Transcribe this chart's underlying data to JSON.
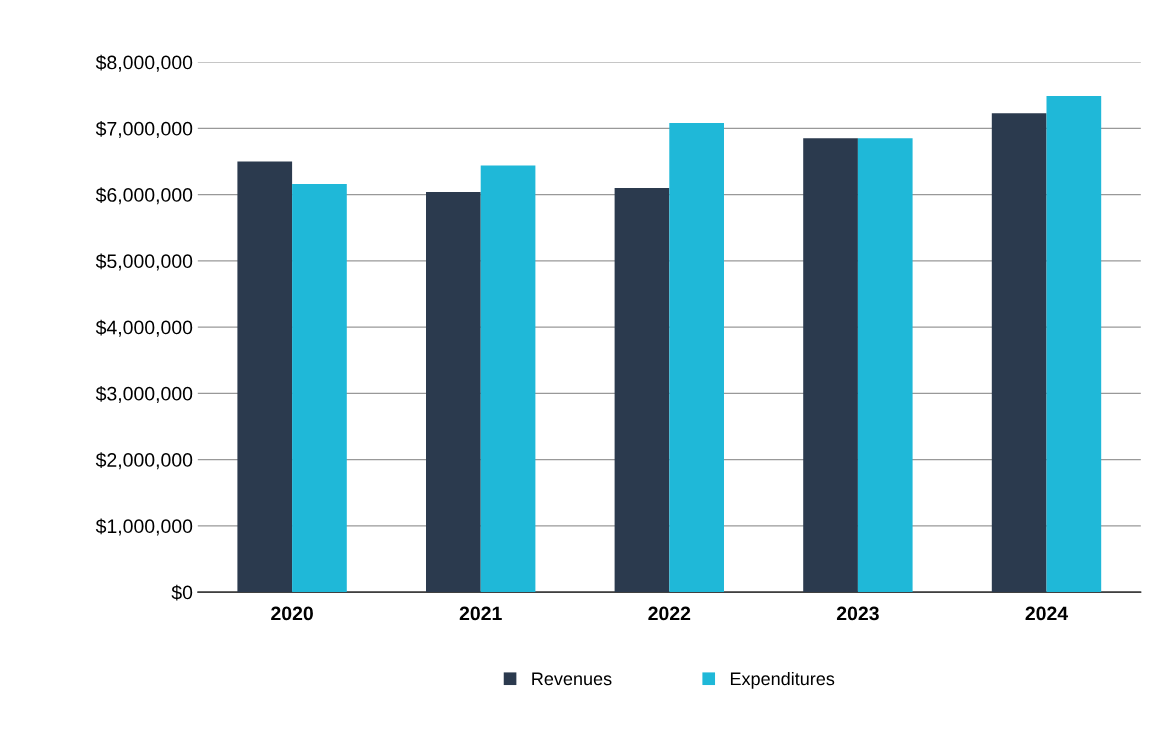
{
  "chart_data": {
    "type": "bar",
    "categories": [
      "2020",
      "2021",
      "2022",
      "2023",
      "2024"
    ],
    "series": [
      {
        "name": "Revenues",
        "color": "#2b3a4e",
        "values": [
          6500000,
          6040000,
          6100000,
          6850000,
          7230000
        ]
      },
      {
        "name": "Expenditures",
        "color": "#1fb8d8",
        "values": [
          6160000,
          6440000,
          7080000,
          6850000,
          7490000
        ]
      }
    ],
    "ylim": [
      0,
      8000000
    ],
    "yticks": [
      {
        "value": 0,
        "label": "$0"
      },
      {
        "value": 1000000,
        "label": "$1,000,000"
      },
      {
        "value": 2000000,
        "label": "$2,000,000"
      },
      {
        "value": 3000000,
        "label": "$3,000,000"
      },
      {
        "value": 4000000,
        "label": "$4,000,000"
      },
      {
        "value": 5000000,
        "label": "$5,000,000"
      },
      {
        "value": 6000000,
        "label": "$6,000,000"
      },
      {
        "value": 7000000,
        "label": "$7,000,000"
      },
      {
        "value": 8000000,
        "label": "$8,000,000"
      }
    ],
    "grid": "y",
    "legend": "bottom"
  }
}
